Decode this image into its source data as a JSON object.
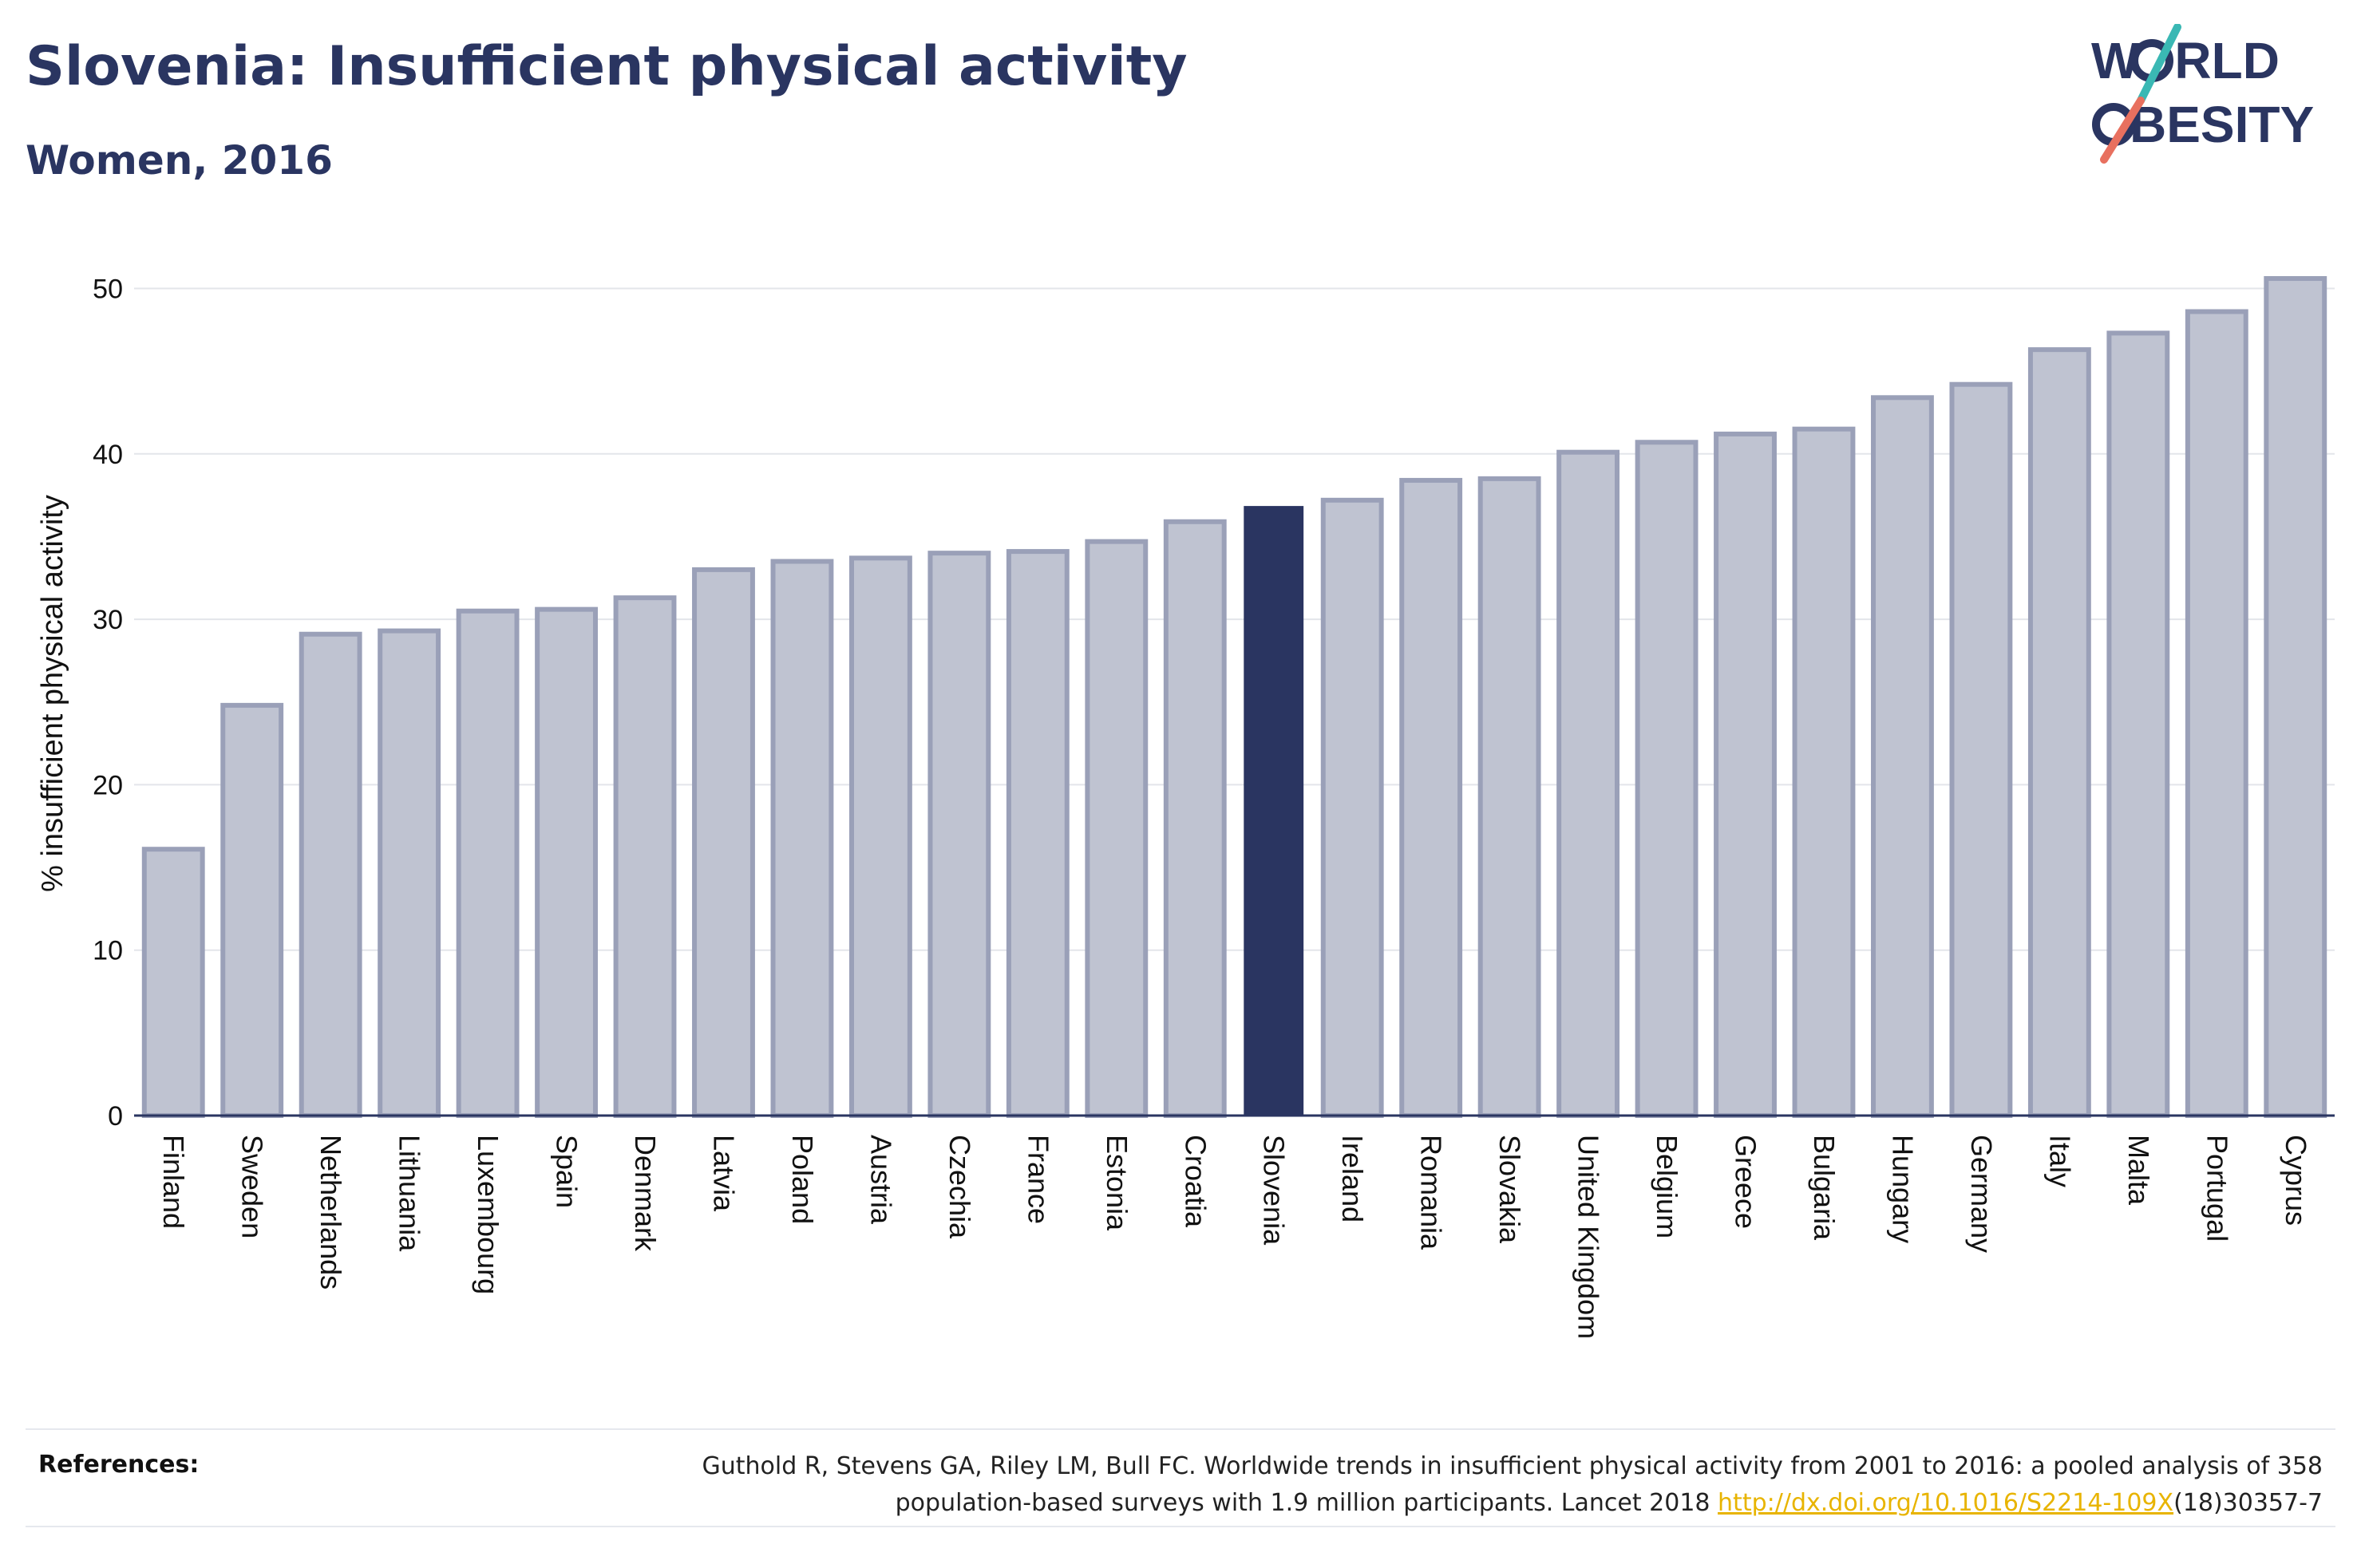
{
  "header": {
    "title": "Slovenia: Insufficient physical activity",
    "subtitle": "Women, 2016"
  },
  "logo": {
    "line1": "W",
    "line1_rest": "RLD",
    "line2_rest": "BESITY",
    "text": "WORLD OBESITY",
    "colors": {
      "text": "#2a3561",
      "slash_top": "#3ab8b4",
      "slash_bottom": "#e8705f"
    }
  },
  "colors": {
    "highlight": "#2a3561",
    "bar_fill": "#bfc3d1",
    "bar_stroke": "#9aa0b8",
    "grid": "#e3e5ea",
    "axis": "#2a3561",
    "link": "#e8b400"
  },
  "chart_data": {
    "type": "bar",
    "title": "Slovenia: Insufficient physical activity",
    "subtitle": "Women, 2016",
    "xlabel": "",
    "ylabel": "% insufficient physical activity",
    "ylim": [
      0,
      52
    ],
    "yticks": [
      0,
      10,
      20,
      30,
      40,
      50
    ],
    "grid": true,
    "highlight": "Slovenia",
    "categories": [
      "Finland",
      "Sweden",
      "Netherlands",
      "Lithuania",
      "Luxembourg",
      "Spain",
      "Denmark",
      "Latvia",
      "Poland",
      "Austria",
      "Czechia",
      "France",
      "Estonia",
      "Croatia",
      "Slovenia",
      "Ireland",
      "Romania",
      "Slovakia",
      "United Kingdom",
      "Belgium",
      "Greece",
      "Bulgaria",
      "Hungary",
      "Germany",
      "Italy",
      "Malta",
      "Portugal",
      "Cyprus"
    ],
    "values": [
      16.1,
      24.8,
      29.1,
      29.3,
      30.5,
      30.6,
      31.3,
      33.0,
      33.5,
      33.7,
      34.0,
      34.1,
      34.7,
      35.9,
      36.8,
      37.2,
      38.4,
      38.5,
      40.1,
      40.7,
      41.2,
      41.5,
      43.4,
      44.2,
      46.3,
      47.3,
      48.6,
      50.6
    ]
  },
  "references": {
    "label": "References:",
    "line1": "Guthold R, Stevens GA, Riley LM, Bull FC. Worldwide trends in insufficient physical activity from 2001 to 2016: a pooled analysis of 358",
    "line2_prefix": "population-based surveys with 1.9 million participants. Lancet 2018 ",
    "link": "http://dx.doi.org/10.1016/S2214-109X",
    "line2_suffix": "(18)30357-7"
  }
}
